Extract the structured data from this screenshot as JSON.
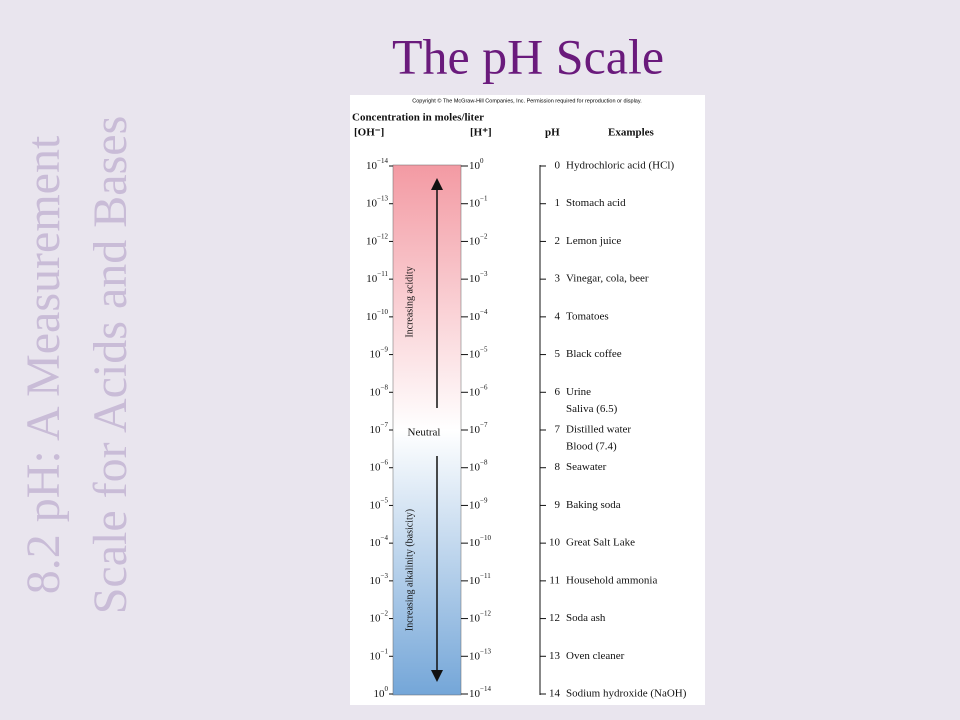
{
  "title": "The pH Scale",
  "side_title": [
    "8.2 pH: A Measurement",
    "Scale for Acids and Bases"
  ],
  "figure": {
    "copyright": "Copyright © The McGraw-Hill Companies, Inc. Permission required for reproduction or display.",
    "heading": "Concentration in moles/liter",
    "headers": {
      "oh": "[OH⁻]",
      "h": "[H⁺]",
      "ph": "pH",
      "examples": "Examples"
    },
    "bar_labels": {
      "acid": "Increasing acidity",
      "neutral": "Neutral",
      "base": "Increasing alkalinity (basicity)"
    },
    "rows": [
      {
        "oh": {
          "base": "10",
          "exp": "−14"
        },
        "h": {
          "base": "10",
          "exp": "0"
        },
        "ph": 0,
        "examples": [
          "Hydrochloric acid (HCl)"
        ]
      },
      {
        "oh": {
          "base": "10",
          "exp": "−13"
        },
        "h": {
          "base": "10",
          "exp": "−1"
        },
        "ph": 1,
        "examples": [
          "Stomach acid"
        ]
      },
      {
        "oh": {
          "base": "10",
          "exp": "−12"
        },
        "h": {
          "base": "10",
          "exp": "−2"
        },
        "ph": 2,
        "examples": [
          "Lemon juice"
        ]
      },
      {
        "oh": {
          "base": "10",
          "exp": "−11"
        },
        "h": {
          "base": "10",
          "exp": "−3"
        },
        "ph": 3,
        "examples": [
          "Vinegar, cola, beer"
        ]
      },
      {
        "oh": {
          "base": "10",
          "exp": "−10"
        },
        "h": {
          "base": "10",
          "exp": "−4"
        },
        "ph": 4,
        "examples": [
          "Tomatoes"
        ]
      },
      {
        "oh": {
          "base": "10",
          "exp": "−9"
        },
        "h": {
          "base": "10",
          "exp": "−5"
        },
        "ph": 5,
        "examples": [
          "Black coffee"
        ]
      },
      {
        "oh": {
          "base": "10",
          "exp": "−8"
        },
        "h": {
          "base": "10",
          "exp": "−6"
        },
        "ph": 6,
        "examples": [
          "Urine",
          "Saliva (6.5)"
        ]
      },
      {
        "oh": {
          "base": "10",
          "exp": "−7"
        },
        "h": {
          "base": "10",
          "exp": "−7"
        },
        "ph": 7,
        "examples": [
          "Distilled water",
          "Blood (7.4)"
        ]
      },
      {
        "oh": {
          "base": "10",
          "exp": "−6"
        },
        "h": {
          "base": "10",
          "exp": "−8"
        },
        "ph": 8,
        "examples": [
          "Seawater"
        ]
      },
      {
        "oh": {
          "base": "10",
          "exp": "−5"
        },
        "h": {
          "base": "10",
          "exp": "−9"
        },
        "ph": 9,
        "examples": [
          "Baking soda"
        ]
      },
      {
        "oh": {
          "base": "10",
          "exp": "−4"
        },
        "h": {
          "base": "10",
          "exp": "−10"
        },
        "ph": 10,
        "examples": [
          "Great Salt Lake"
        ]
      },
      {
        "oh": {
          "base": "10",
          "exp": "−3"
        },
        "h": {
          "base": "10",
          "exp": "−11"
        },
        "ph": 11,
        "examples": [
          "Household ammonia"
        ]
      },
      {
        "oh": {
          "base": "10",
          "exp": "−2"
        },
        "h": {
          "base": "10",
          "exp": "−12"
        },
        "ph": 12,
        "examples": [
          "Soda ash"
        ]
      },
      {
        "oh": {
          "base": "10",
          "exp": "−1"
        },
        "h": {
          "base": "10",
          "exp": "−13"
        },
        "ph": 13,
        "examples": [
          "Oven cleaner"
        ]
      },
      {
        "oh": {
          "base": "10",
          "exp": "0"
        },
        "h": {
          "base": "10",
          "exp": "−14"
        },
        "ph": 14,
        "examples": [
          "Sodium hydroxide (NaOH)"
        ]
      }
    ]
  }
}
